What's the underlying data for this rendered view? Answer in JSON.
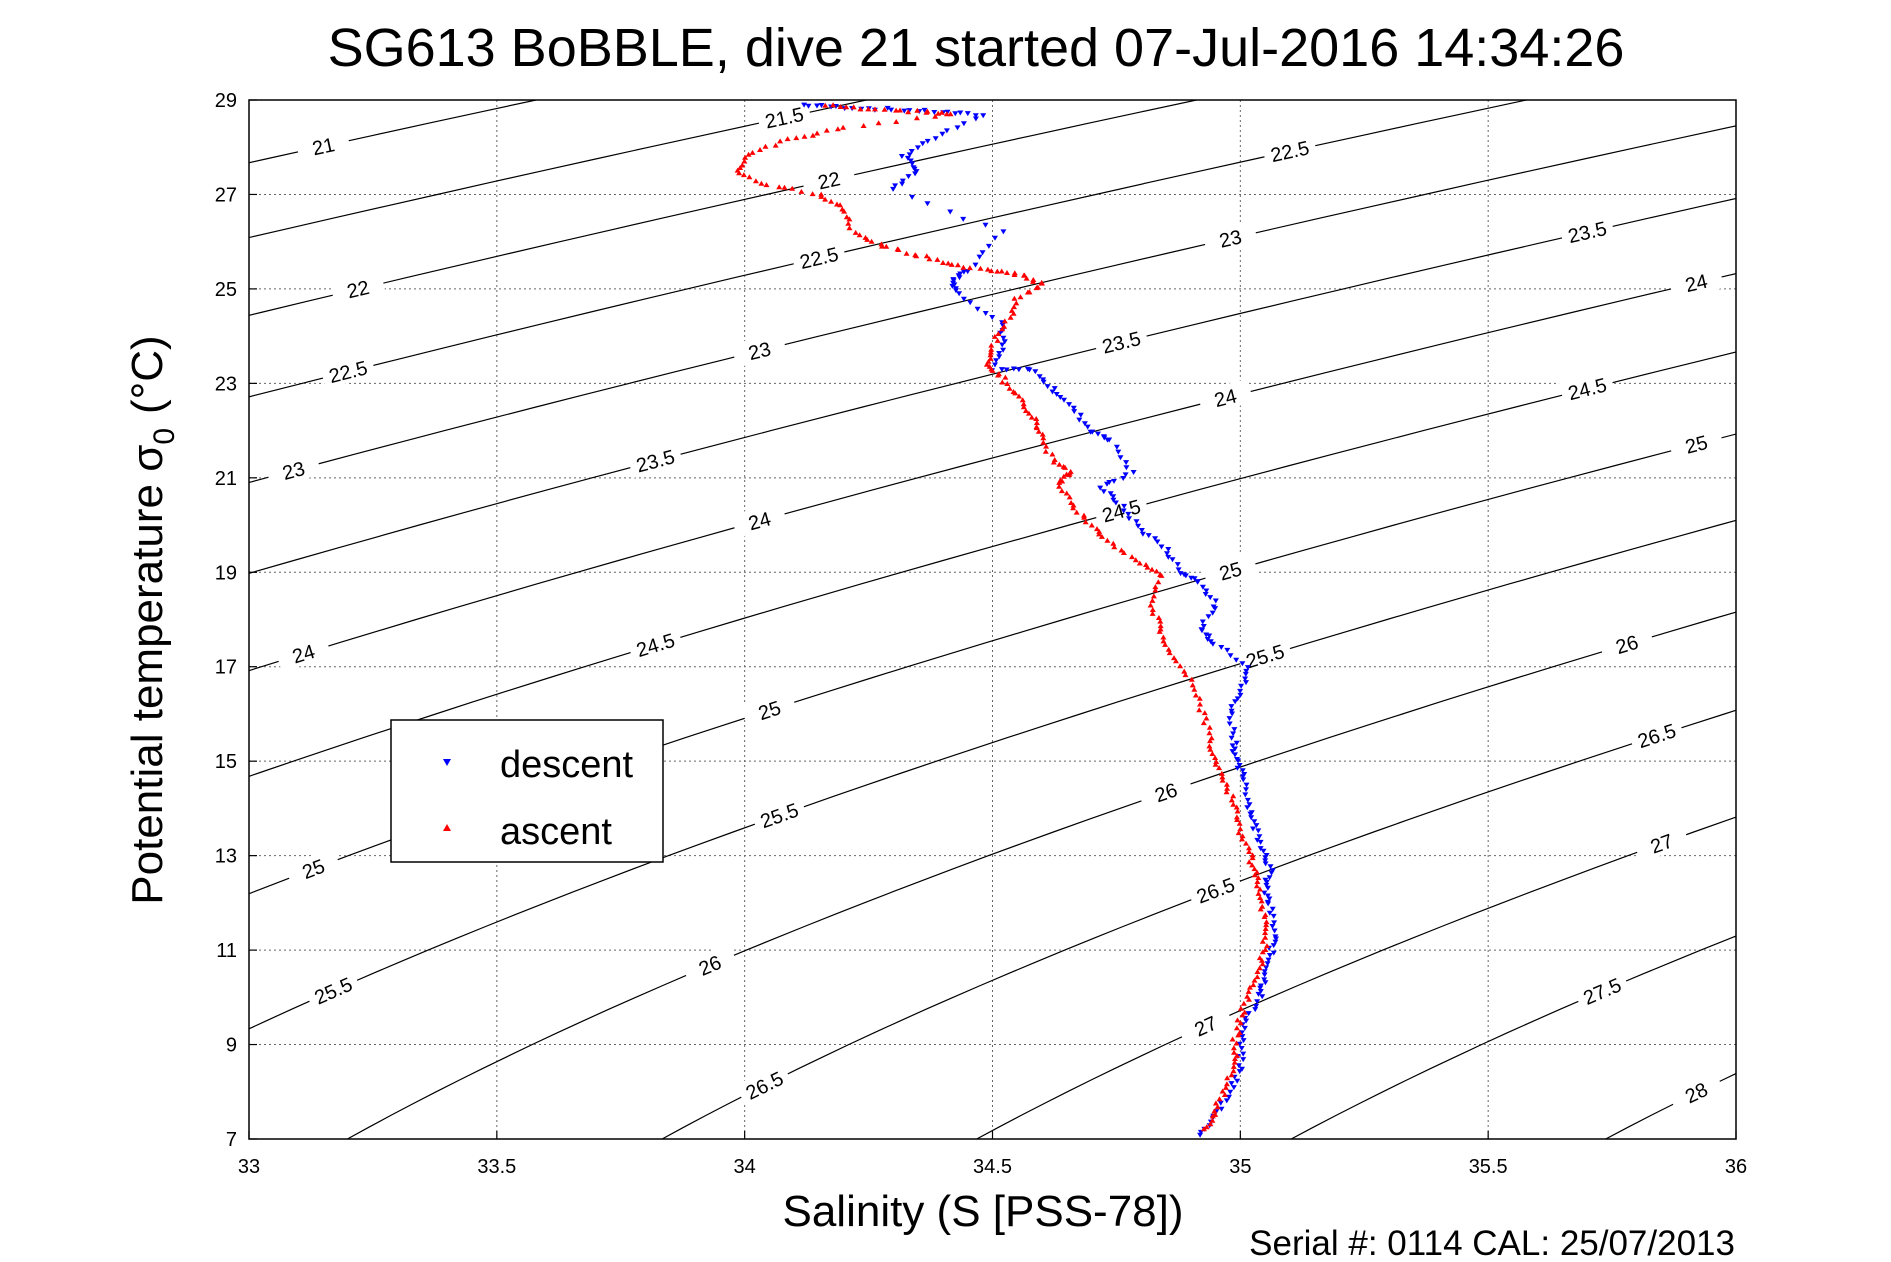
{
  "chart_data": {
    "type": "scatter",
    "title": "SG613 BoBBLE, dive 21 started 07-Jul-2016 14:34:26",
    "xlabel": "Salinity (S [PSS-78])",
    "ylabel_main": "Potential temperature σ",
    "ylabel_sub": "0",
    "ylabel_unit": "(°C)",
    "footer": "Serial #: 0114  CAL: 25/07/2013",
    "xlim": [
      33,
      36
    ],
    "ylim": [
      7,
      29
    ],
    "xticks": [
      "33",
      "33.5",
      "34",
      "34.5",
      "35",
      "35.5",
      "36"
    ],
    "yticks": [
      "7",
      "9",
      "11",
      "13",
      "15",
      "17",
      "19",
      "21",
      "23",
      "25",
      "27",
      "29"
    ],
    "grid": true,
    "legend_position": "center-left",
    "colors": {
      "descent": "#0000ff",
      "ascent": "#ff0000",
      "isopycnal": "#000000"
    },
    "isopycnal_values": [
      21,
      21.5,
      22,
      22.5,
      23,
      23.5,
      24,
      24.5,
      25,
      25.5,
      26,
      26.5,
      27,
      27.5,
      28
    ],
    "isopycnal_labels": [
      {
        "sigma": 21,
        "text": "21",
        "x": 33.15
      },
      {
        "sigma": 21.5,
        "text": "21.5",
        "x": 34.08
      },
      {
        "sigma": 22,
        "text": "22",
        "x": 33.22
      },
      {
        "sigma": 22,
        "text": "22",
        "x": 34.17
      },
      {
        "sigma": 22.5,
        "text": "22.5",
        "x": 33.2
      },
      {
        "sigma": 22.5,
        "text": "22.5",
        "x": 34.15
      },
      {
        "sigma": 22.5,
        "text": "22.5",
        "x": 35.1
      },
      {
        "sigma": 23,
        "text": "23",
        "x": 33.09
      },
      {
        "sigma": 23,
        "text": "23",
        "x": 34.03
      },
      {
        "sigma": 23,
        "text": "23",
        "x": 34.98
      },
      {
        "sigma": 23.5,
        "text": "23.5",
        "x": 33.82
      },
      {
        "sigma": 23.5,
        "text": "23.5",
        "x": 34.76
      },
      {
        "sigma": 23.5,
        "text": "23.5",
        "x": 35.7
      },
      {
        "sigma": 24,
        "text": "24",
        "x": 34.03
      },
      {
        "sigma": 24,
        "text": "24",
        "x": 34.97
      },
      {
        "sigma": 24,
        "text": "24",
        "x": 35.92
      },
      {
        "sigma": 24,
        "text": "24",
        "x": 33.11
      },
      {
        "sigma": 24.5,
        "text": "24.5",
        "x": 33.82
      },
      {
        "sigma": 24.5,
        "text": "24.5",
        "x": 34.76
      },
      {
        "sigma": 24.5,
        "text": "24.5",
        "x": 35.7
      },
      {
        "sigma": 25,
        "text": "25",
        "x": 34.05
      },
      {
        "sigma": 25,
        "text": "25",
        "x": 34.98
      },
      {
        "sigma": 25,
        "text": "25",
        "x": 35.92
      },
      {
        "sigma": 25,
        "text": "25",
        "x": 33.13
      },
      {
        "sigma": 25.5,
        "text": "25.5",
        "x": 33.17
      },
      {
        "sigma": 25.5,
        "text": "25.5",
        "x": 34.07
      },
      {
        "sigma": 25.5,
        "text": "25.5",
        "x": 35.05
      },
      {
        "sigma": 26,
        "text": "26",
        "x": 33.93
      },
      {
        "sigma": 26,
        "text": "26",
        "x": 34.85
      },
      {
        "sigma": 26,
        "text": "26",
        "x": 35.78
      },
      {
        "sigma": 26.5,
        "text": "26.5",
        "x": 34.04
      },
      {
        "sigma": 26.5,
        "text": "26.5",
        "x": 34.95
      },
      {
        "sigma": 26.5,
        "text": "26.5",
        "x": 35.84
      },
      {
        "sigma": 27,
        "text": "27",
        "x": 34.93
      },
      {
        "sigma": 27,
        "text": "27",
        "x": 35.85
      },
      {
        "sigma": 27.5,
        "text": "27.5",
        "x": 35.73
      },
      {
        "sigma": 28,
        "text": "28",
        "x": 35.92
      }
    ],
    "series": [
      {
        "name": "descent",
        "color": "#0000ff",
        "marker": "triangle-down",
        "points": [
          [
            34.12,
            28.9
          ],
          [
            34.2,
            28.85
          ],
          [
            34.3,
            28.8
          ],
          [
            34.4,
            28.75
          ],
          [
            34.48,
            28.68
          ],
          [
            34.38,
            28.2
          ],
          [
            34.32,
            27.8
          ],
          [
            34.35,
            27.5
          ],
          [
            34.3,
            27.1
          ],
          [
            34.52,
            26.2
          ],
          [
            34.45,
            25.4
          ],
          [
            34.42,
            25.2
          ],
          [
            34.43,
            24.9
          ],
          [
            34.52,
            24.3
          ],
          [
            34.52,
            23.8
          ],
          [
            34.5,
            23.3
          ],
          [
            34.58,
            23.3
          ],
          [
            34.62,
            22.9
          ],
          [
            34.66,
            22.5
          ],
          [
            34.7,
            22.0
          ],
          [
            34.74,
            21.8
          ],
          [
            34.78,
            21.1
          ],
          [
            34.72,
            20.8
          ],
          [
            34.76,
            20.4
          ],
          [
            34.8,
            19.9
          ],
          [
            34.85,
            19.5
          ],
          [
            34.88,
            19.0
          ],
          [
            34.92,
            18.8
          ],
          [
            34.95,
            18.3
          ],
          [
            34.92,
            17.8
          ],
          [
            34.95,
            17.5
          ],
          [
            35.02,
            17.0
          ],
          [
            35.0,
            16.5
          ],
          [
            34.98,
            16.0
          ],
          [
            34.99,
            15.4
          ],
          [
            34.99,
            15.0
          ],
          [
            35.01,
            14.6
          ],
          [
            35.02,
            14.0
          ],
          [
            35.03,
            13.6
          ],
          [
            35.05,
            13.1
          ],
          [
            35.06,
            12.7
          ],
          [
            35.05,
            12.3
          ],
          [
            35.06,
            11.9
          ],
          [
            35.07,
            11.3
          ],
          [
            35.06,
            10.9
          ],
          [
            35.05,
            10.4
          ],
          [
            35.04,
            10.0
          ],
          [
            35.01,
            9.5
          ],
          [
            35.0,
            9.0
          ],
          [
            35.0,
            8.5
          ],
          [
            34.98,
            8.0
          ],
          [
            34.95,
            7.5
          ],
          [
            34.92,
            7.1
          ]
        ]
      },
      {
        "name": "ascent",
        "color": "#ff0000",
        "marker": "triangle-up",
        "points": [
          [
            34.16,
            28.88
          ],
          [
            34.25,
            28.8
          ],
          [
            34.35,
            28.75
          ],
          [
            34.42,
            28.7
          ],
          [
            34.2,
            28.4
          ],
          [
            34.1,
            28.2
          ],
          [
            34.02,
            27.9
          ],
          [
            33.98,
            27.5
          ],
          [
            34.05,
            27.2
          ],
          [
            34.15,
            27.0
          ],
          [
            34.2,
            26.7
          ],
          [
            34.22,
            26.2
          ],
          [
            34.28,
            25.9
          ],
          [
            34.35,
            25.7
          ],
          [
            34.42,
            25.5
          ],
          [
            34.5,
            25.4
          ],
          [
            34.56,
            25.3
          ],
          [
            34.6,
            25.1
          ],
          [
            34.55,
            24.8
          ],
          [
            34.53,
            24.3
          ],
          [
            34.5,
            23.8
          ],
          [
            34.49,
            23.4
          ],
          [
            34.52,
            23.1
          ],
          [
            34.55,
            22.7
          ],
          [
            34.58,
            22.3
          ],
          [
            34.6,
            21.9
          ],
          [
            34.62,
            21.4
          ],
          [
            34.66,
            21.1
          ],
          [
            34.63,
            20.9
          ],
          [
            34.66,
            20.4
          ],
          [
            34.7,
            20.0
          ],
          [
            34.74,
            19.6
          ],
          [
            34.8,
            19.2
          ],
          [
            34.84,
            18.9
          ],
          [
            34.82,
            18.3
          ],
          [
            34.84,
            17.8
          ],
          [
            34.86,
            17.3
          ],
          [
            34.9,
            16.7
          ],
          [
            34.92,
            16.1
          ],
          [
            34.94,
            15.5
          ],
          [
            34.95,
            15.0
          ],
          [
            34.97,
            14.5
          ],
          [
            34.99,
            14.0
          ],
          [
            35.0,
            13.5
          ],
          [
            35.02,
            13.0
          ],
          [
            35.03,
            12.6
          ],
          [
            35.04,
            12.1
          ],
          [
            35.05,
            11.6
          ],
          [
            35.05,
            11.1
          ],
          [
            35.04,
            10.6
          ],
          [
            35.02,
            10.1
          ],
          [
            35.0,
            9.6
          ],
          [
            34.99,
            9.1
          ],
          [
            34.99,
            8.6
          ],
          [
            34.97,
            8.1
          ],
          [
            34.95,
            7.6
          ],
          [
            34.93,
            7.2
          ]
        ]
      }
    ]
  }
}
